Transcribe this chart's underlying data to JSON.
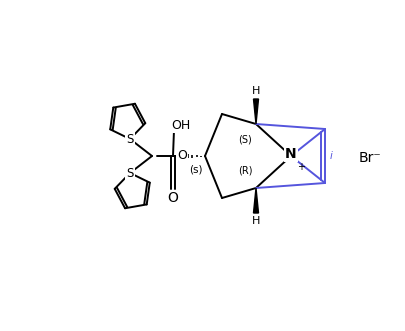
{
  "bg_color": "#ffffff",
  "line_color": "#000000",
  "blue_color": "#5555dd",
  "figsize": [
    4.06,
    3.31
  ],
  "dpi": 100,
  "br_label": "Br⁻",
  "s_stereo": "(s)",
  "r_label": "(R)",
  "s_label": "(S)",
  "plus_label": "+",
  "h_top_label": "H",
  "h_bot_label": "H",
  "o_label": "O",
  "oh_label": "OH",
  "n_label": "N",
  "i_label": "i"
}
